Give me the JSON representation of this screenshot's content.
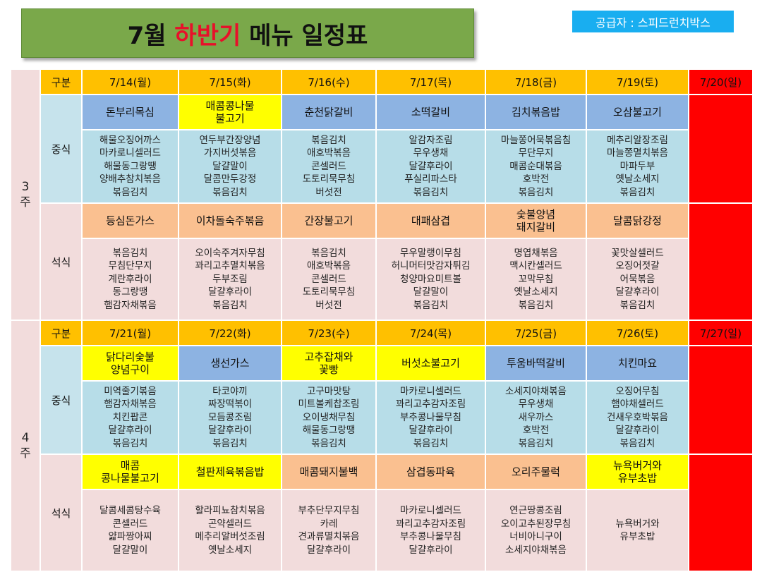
{
  "title": {
    "prefix": "7월 ",
    "highlight": "하반기",
    "suffix": " 메뉴 일정표"
  },
  "supplier": "공급자 : 스피드런치박스",
  "header_label": "구분",
  "meal_labels": {
    "lunch": "중식",
    "dinner": "석식"
  },
  "colors": {
    "title_bg": "#7aa84a",
    "header": "#ffc000",
    "sunday": "#ff0000",
    "blue_head": "#8db3e2",
    "yellow_head": "#ffff00",
    "peach_head": "#fac090",
    "lunch_bg": "#b7dde8",
    "dinner_bg": "#f2dcdc",
    "supplier_bg": "#19aef0"
  },
  "weeks": [
    {
      "label_num": "3",
      "label_unit": "주",
      "dates": [
        "7/14(월)",
        "7/15(화)",
        "7/16(수)",
        "7/17(목)",
        "7/18(금)",
        "7/19(토)"
      ],
      "sunday": "7/20(일)",
      "lunch_heads": [
        {
          "text": [
            "돈부리목심"
          ],
          "style": "blue"
        },
        {
          "text": [
            "매콤콩나물",
            "불고기"
          ],
          "style": "yellow"
        },
        {
          "text": [
            "춘천닭갈비"
          ],
          "style": "blue"
        },
        {
          "text": [
            "소떡갈비"
          ],
          "style": "blue"
        },
        {
          "text": [
            "김치볶음밥"
          ],
          "style": "blue"
        },
        {
          "text": [
            "오삼불고기"
          ],
          "style": "blue"
        }
      ],
      "lunch_items": [
        [
          "해물오징어까스",
          "마카로니셀러드",
          "해물동그랑땡",
          "양배추참치볶음",
          "볶음김치"
        ],
        [
          "연두부간장양념",
          "가지버섯볶음",
          "달걀말이",
          "달콤만두강정",
          "볶음김치"
        ],
        [
          "볶음김치",
          "애호박볶음",
          "콘셀러드",
          "도토리묵무침",
          "버섯전"
        ],
        [
          "알감자조림",
          "무우생채",
          "달걀후라이",
          "푸실리파스타",
          "볶음김치"
        ],
        [
          "마늘쫑어묵볶음침",
          "무단무지",
          "매콤순대볶음",
          "호박전",
          "볶음김치"
        ],
        [
          "메추리알장조림",
          "마늘쫑멸치볶음",
          "마파두부",
          "옛날소세지",
          "볶음김치"
        ]
      ],
      "dinner_heads": [
        {
          "text": [
            "등심돈가스"
          ],
          "style": "peach"
        },
        {
          "text": [
            "이차돌숙주볶음"
          ],
          "style": "peach"
        },
        {
          "text": [
            "간장불고기"
          ],
          "style": "peach"
        },
        {
          "text": [
            "대패삼겹"
          ],
          "style": "peach"
        },
        {
          "text": [
            "숯불양념",
            "돼지갈비"
          ],
          "style": "peach"
        },
        {
          "text": [
            "달콤닭강정"
          ],
          "style": "peach"
        }
      ],
      "dinner_items": [
        [
          "볶음김치",
          "무침단무지",
          "계란후라이",
          "동그랑땡",
          "햄감자채볶음"
        ],
        [
          "오이숙주겨자무침",
          "꽈리고추멸치볶음",
          "두부조림",
          "달걀후라이",
          "볶음김치"
        ],
        [
          "볶음김치",
          "애호박볶음",
          "콘셀러드",
          "도토리묵무침",
          "버섯전"
        ],
        [
          "무우말랭이무침",
          "허니머터맛감자튀김",
          "청양마요미트볼",
          "달걀말이",
          "볶음김치"
        ],
        [
          "명엽채볶음",
          "맥시칸셀러드",
          "꼬막무침",
          "옛날소세지",
          "볶음김치"
        ],
        [
          "꽃맛살셀러드",
          "오징어젓갈",
          "어묵볶음",
          "달걀후라이",
          "볶음김치"
        ]
      ]
    },
    {
      "label_num": "4",
      "label_unit": "주",
      "dates": [
        "7/21(월)",
        "7/22(화)",
        "7/23(수)",
        "7/24(목)",
        "7/25(금)",
        "7/26(토)"
      ],
      "sunday": "7/27(일)",
      "lunch_heads": [
        {
          "text": [
            "닭다리숯불",
            "양념구이"
          ],
          "style": "yellow"
        },
        {
          "text": [
            "생선가스"
          ],
          "style": "blue"
        },
        {
          "text": [
            "고추잡채와",
            "꽃빵"
          ],
          "style": "yellow"
        },
        {
          "text": [
            "버섯소불고기"
          ],
          "style": "yellow"
        },
        {
          "text": [
            "투움바떡갈비"
          ],
          "style": "blue"
        },
        {
          "text": [
            "치킨마요"
          ],
          "style": "blue"
        }
      ],
      "lunch_items": [
        [
          "미역줄기볶음",
          "햄감자채볶음",
          "치킨팝콘",
          "달걀후라이",
          "볶음김치"
        ],
        [
          "타코야끼",
          "짜장떡볶이",
          "모듬콩조림",
          "달걀후라이",
          "볶음김치"
        ],
        [
          "고구마맛탕",
          "미트볼케찹조림",
          "오이냉채무침",
          "해물동그랑땡",
          "볶음김치"
        ],
        [
          "마카로니셀러드",
          "꽈리고추감자조림",
          "부추콩나물무침",
          "달걀후라이",
          "볶음김치"
        ],
        [
          "소세지야채볶음",
          "무우생채",
          "새우까스",
          "호박전",
          "볶음김치"
        ],
        [
          "오징어무침",
          "햄야채셀러드",
          "건새우호박볶음",
          "달걀후라이",
          "볶음김치"
        ]
      ],
      "dinner_heads": [
        {
          "text": [
            "매콤",
            "콩나물불고기"
          ],
          "style": "yellow"
        },
        {
          "text": [
            "철판제육볶음밥"
          ],
          "style": "yellow"
        },
        {
          "text": [
            "매콤돼지불백"
          ],
          "style": "peach"
        },
        {
          "text": [
            "삼겹동파육"
          ],
          "style": "peach"
        },
        {
          "text": [
            "오리주물럭"
          ],
          "style": "peach"
        },
        {
          "text": [
            "뉴욕버거와",
            "유부초밥"
          ],
          "style": "yellow"
        }
      ],
      "dinner_items": [
        [
          "달콤세콤탕수육",
          "콘셀러드",
          "얇파짱아찌",
          "달걀말이"
        ],
        [
          "할라피뇨참치볶음",
          "곤약셀러드",
          "메추리알버섯조림",
          "옛날소세지"
        ],
        [
          "부추단무지무침",
          "카레",
          "견과류멸치볶음",
          "달걀후라이"
        ],
        [
          "마카로니셀러드",
          "꽈리고추감자조림",
          "부추콩나물무침",
          "달걀후라이"
        ],
        [
          "연근땅콩조림",
          "오이고추된장무침",
          "너비아니구이",
          "소세지야채볶음"
        ],
        [
          "뉴욕버거와",
          "유부초밥"
        ]
      ]
    }
  ]
}
